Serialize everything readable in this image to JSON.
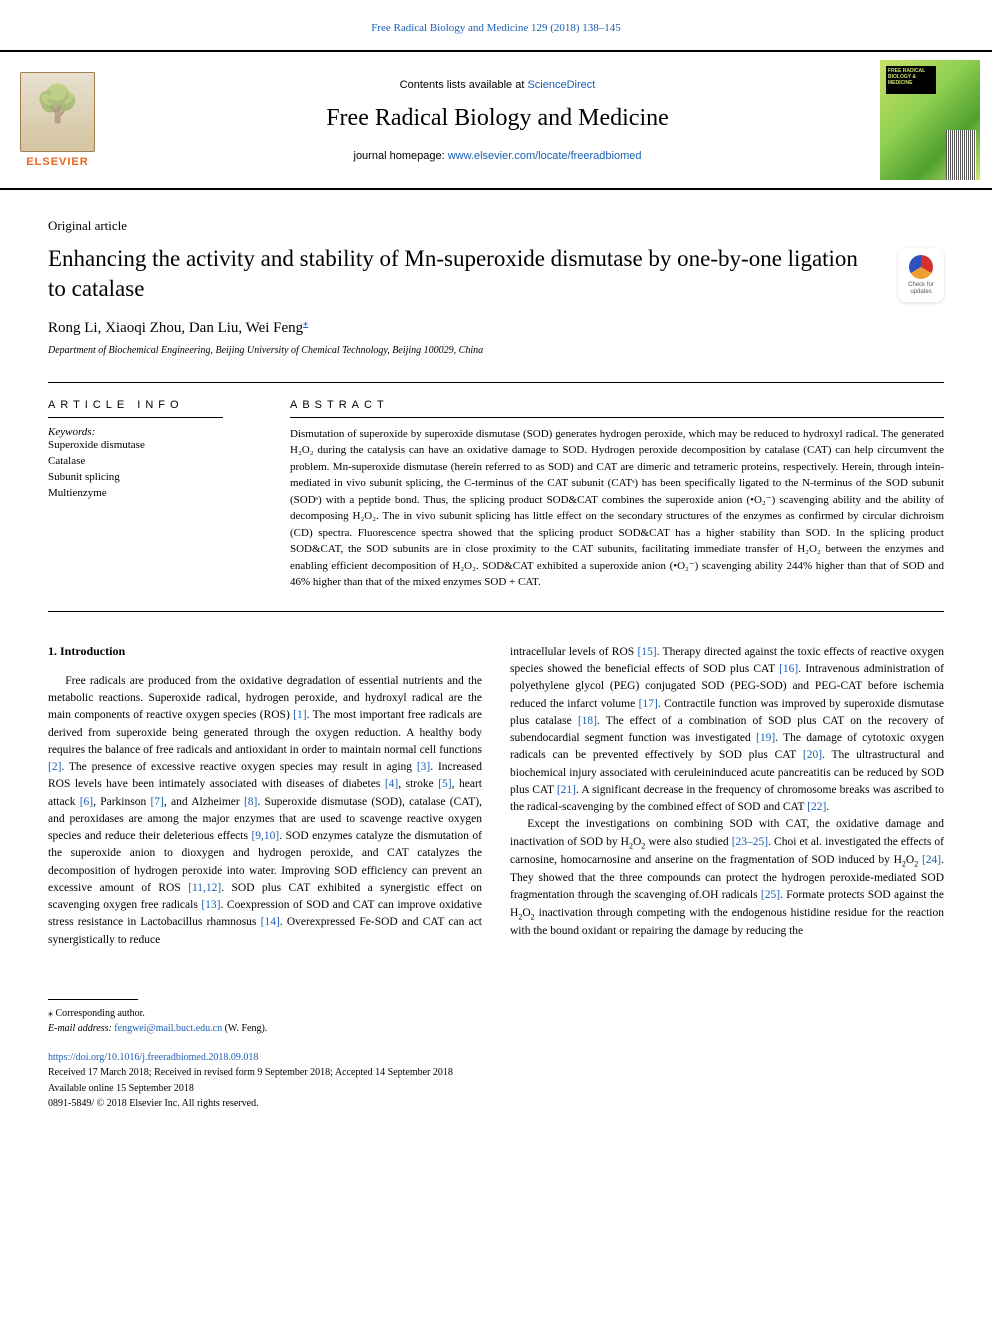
{
  "header": {
    "journal_ref": "Free Radical Biology and Medicine 129 (2018) 138–145",
    "contents_prefix": "Contents lists available at ",
    "contents_link": "ScienceDirect",
    "journal_name": "Free Radical Biology and Medicine",
    "homepage_prefix": "journal homepage: ",
    "homepage_url": "www.elsevier.com/locate/freeradbiomed",
    "publisher_logo_text": "ELSEVIER",
    "cover_text": "FREE RADICAL BIOLOGY & MEDICINE"
  },
  "article": {
    "type": "Original article",
    "title": "Enhancing the activity and stability of Mn-superoxide dismutase by one-by-one ligation to catalase",
    "authors": "Rong Li, Xiaoqi Zhou, Dan Liu, Wei Feng",
    "cor_symbol": "⁎",
    "affiliation": "Department of Biochemical Engineering, Beijing University of Chemical Technology, Beijing 100029, China",
    "crossmark_text": "Check for updates"
  },
  "info": {
    "heading": "ARTICLE INFO",
    "kw_label": "Keywords:",
    "keywords": [
      "Superoxide dismutase",
      "Catalase",
      "Subunit splicing",
      "Multienzyme"
    ]
  },
  "abstract": {
    "heading": "ABSTRACT",
    "text": "Dismutation of superoxide by superoxide dismutase (SOD) generates hydrogen peroxide, which may be reduced to hydroxyl radical. The generated H₂O₂ during the catalysis can have an oxidative damage to SOD. Hydrogen peroxide decomposition by catalase (CAT) can help circumvent the problem. Mn-superoxide dismutase (herein referred to as SOD) and CAT are dimeric and tetrameric proteins, respectively. Herein, through intein-mediated in vivo subunit splicing, the C-terminus of the CAT subunit (CATˢ) has been specifically ligated to the N-terminus of the SOD subunit (SODˢ) with a peptide bond. Thus, the splicing product SOD&CAT combines the superoxide anion (•O₂⁻) scavenging ability and the ability of decomposing H₂O₂. The in vivo subunit splicing has little effect on the secondary structures of the enzymes as confirmed by circular dichroism (CD) spectra. Fluorescence spectra showed that the splicing product SOD&CAT has a higher stability than SOD. In the splicing product SOD&CAT, the SOD subunits are in close proximity to the CAT subunits, facilitating immediate transfer of H₂O₂ between the enzymes and enabling efficient decomposition of H₂O₂. SOD&CAT exhibited a superoxide anion (•O₂⁻) scavenging ability 244% higher than that of SOD and 46% higher than that of the mixed enzymes SOD + CAT."
  },
  "body": {
    "intro_heading": "1. Introduction",
    "col1_html": "Free radicals are produced from the oxidative degradation of essential nutrients and the metabolic reactions. Superoxide radical, hydrogen peroxide, and hydroxyl radical are the main components of reactive oxygen species (ROS) <a class='ref-link' href='#'>[1]</a>. The most important free radicals are derived from superoxide being generated through the oxygen reduction. A healthy body requires the balance of free radicals and antioxidant in order to maintain normal cell functions <a class='ref-link' href='#'>[2]</a>. The presence of excessive reactive oxygen species may result in aging <a class='ref-link' href='#'>[3]</a>. Increased ROS levels have been intimately associated with diseases of diabetes <a class='ref-link' href='#'>[4]</a>, stroke <a class='ref-link' href='#'>[5]</a>, heart attack <a class='ref-link' href='#'>[6]</a>, Parkinson <a class='ref-link' href='#'>[7]</a>, and Alzheimer <a class='ref-link' href='#'>[8]</a>. Superoxide dismutase (SOD), catalase (CAT), and peroxidases are among the major enzymes that are used to scavenge reactive oxygen species and reduce their deleterious effects <a class='ref-link' href='#'>[9,10]</a>. SOD enzymes catalyze the dismutation of the superoxide anion to dioxygen and hydrogen peroxide, and CAT catalyzes the decomposition of hydrogen peroxide into water. Improving SOD efficiency can prevent an excessive amount of ROS <a class='ref-link' href='#'>[11,12]</a>. SOD plus CAT exhibited a synergistic effect on scavenging oxygen free radicals <a class='ref-link' href='#'>[13]</a>. Coexpression of SOD and CAT can improve oxidative stress resistance in Lactobacillus rhamnosus <a class='ref-link' href='#'>[14]</a>. Overexpressed Fe-SOD and CAT can act synergistically to reduce",
    "col2_p1_html": "intracellular levels of ROS <a class='ref-link' href='#'>[15]</a>. Therapy directed against the toxic effects of reactive oxygen species showed the beneficial effects of SOD plus CAT <a class='ref-link' href='#'>[16]</a>. Intravenous administration of polyethylene glycol (PEG) conjugated SOD (PEG-SOD) and PEG-CAT before ischemia reduced the infarct volume <a class='ref-link' href='#'>[17]</a>. Contractile function was improved by superoxide dismutase plus catalase <a class='ref-link' href='#'>[18]</a>. The effect of a combination of SOD plus CAT on the recovery of subendocardial segment function was investigated <a class='ref-link' href='#'>[19]</a>. The damage of cytotoxic oxygen radicals can be prevented effectively by SOD plus CAT <a class='ref-link' href='#'>[20]</a>. The ultrastructural and biochemical injury associated with ceruleininduced acute pancreatitis can be reduced by SOD plus CAT <a class='ref-link' href='#'>[21]</a>. A significant decrease in the frequency of chromosome breaks was ascribed to the radical-scavenging by the combined effect of SOD and CAT <a class='ref-link' href='#'>[22]</a>.",
    "col2_p2_html": "Except the investigations on combining SOD with CAT, the oxidative damage and inactivation of SOD by H<sub>2</sub>O<sub>2</sub> were also studied <a class='ref-link' href='#'>[23–25]</a>. Choi et al. investigated the effects of carnosine, homocarnosine and anserine on the fragmentation of SOD induced by H<sub>2</sub>O<sub>2</sub> <a class='ref-link' href='#'>[24]</a>. They showed that the three compounds can protect the hydrogen peroxide-mediated SOD fragmentation through the scavenging of.OH radicals <a class='ref-link' href='#'>[25]</a>. Formate protects SOD against the H<sub>2</sub>O<sub>2</sub> inactivation through competing with the endogenous histidine residue for the reaction with the bound oxidant or repairing the damage by reducing the"
  },
  "footnotes": {
    "cor_symbol": "⁎",
    "cor_text": " Corresponding author.",
    "email_label": "E-mail address: ",
    "email": "fengwei@mail.buct.edu.cn",
    "email_suffix": " (W. Feng)."
  },
  "pub": {
    "doi": "https://doi.org/10.1016/j.freeradbiomed.2018.09.018",
    "received": "Received 17 March 2018; Received in revised form 9 September 2018; Accepted 14 September 2018",
    "available": "Available online 15 September 2018",
    "copyright": "0891-5849/ © 2018 Elsevier Inc. All rights reserved."
  },
  "style": {
    "link_color": "#1a5fb4",
    "text_color": "#000000",
    "background": "#ffffff",
    "border_color": "#000000",
    "elsevier_orange": "#e8641b",
    "cover_gradient": [
      "#c8e068",
      "#90d050",
      "#50a030",
      "#d0e870"
    ],
    "title_fontsize": 23,
    "journal_fontsize": 24,
    "author_fontsize": 15,
    "body_fontsize": 11.5,
    "abstract_fontsize": 11,
    "footnote_fontsize": 10
  }
}
